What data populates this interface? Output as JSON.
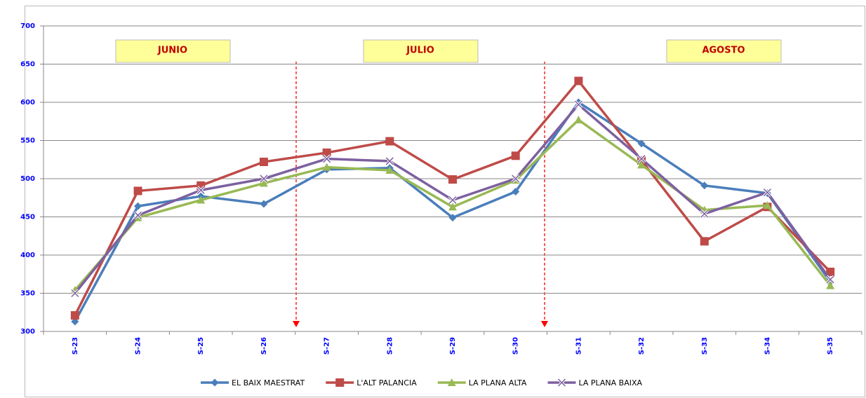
{
  "chart_data": {
    "type": "line",
    "annotations": [
      "JUNIO",
      "JULIO",
      "AGOSTO"
    ],
    "categories": [
      "S-23",
      "S-24",
      "S-25",
      "S-26",
      "S-27",
      "S-28",
      "S-29",
      "S-30",
      "S-31",
      "S-32",
      "S-33",
      "S-34",
      "S-35"
    ],
    "series": [
      {
        "name": "EL BAIX MAESTRAT",
        "color": "#4a7ebb",
        "marker": "diamond",
        "values": [
          313,
          464,
          477,
          467,
          512,
          514,
          449,
          483,
          600,
          546,
          491,
          481,
          365
        ]
      },
      {
        "name": "L'ALT PALANCIA",
        "color": "#be4b48",
        "marker": "square",
        "values": [
          321,
          484,
          491,
          522,
          534,
          549,
          499,
          530,
          628,
          524,
          418,
          463,
          378
        ]
      },
      {
        "name": "LA PLANA ALTA",
        "color": "#98b954",
        "marker": "triangle",
        "values": [
          354,
          449,
          472,
          494,
          515,
          511,
          463,
          498,
          577,
          518,
          459,
          465,
          360
        ]
      },
      {
        "name": "LA PLANA BAIXA",
        "color": "#7d60a0",
        "marker": "x",
        "values": [
          350,
          452,
          485,
          500,
          526,
          523,
          472,
          500,
          597,
          526,
          454,
          482,
          368
        ]
      }
    ],
    "ylim": [
      300,
      700
    ],
    "yticks": [
      300,
      350,
      400,
      450,
      500,
      550,
      600,
      650,
      700
    ],
    "grid": true,
    "legend": "bottom"
  }
}
